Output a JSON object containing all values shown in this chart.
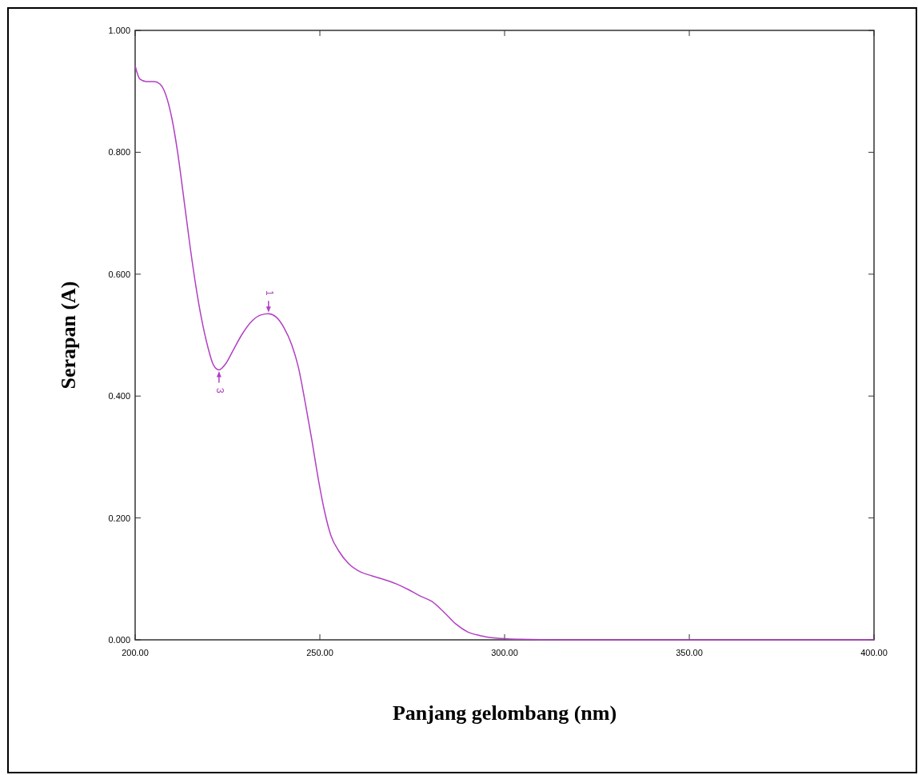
{
  "chart_data": {
    "type": "line",
    "xlabel": "Panjang gelombang (nm)",
    "ylabel": "Serapan (A)",
    "xlim": [
      200,
      400
    ],
    "ylim": [
      0,
      1
    ],
    "xticks": [
      {
        "value": 200,
        "label": "200.00"
      },
      {
        "value": 250,
        "label": "250.00"
      },
      {
        "value": 300,
        "label": "300.00"
      },
      {
        "value": 350,
        "label": "350.00"
      },
      {
        "value": 400,
        "label": "400.00"
      }
    ],
    "yticks": [
      {
        "value": 0,
        "label": "0.000"
      },
      {
        "value": 0.2,
        "label": "0.200"
      },
      {
        "value": 0.4,
        "label": "0.400"
      },
      {
        "value": 0.6,
        "label": "0.600"
      },
      {
        "value": 0.8,
        "label": "0.800"
      },
      {
        "value": 1,
        "label": "1.000"
      }
    ],
    "marker": "none",
    "line_style": "solid",
    "series": [
      {
        "color": "#b23fc4",
        "x": [
          200,
          201.3,
          203,
          205.2,
          206.7,
          208.2,
          210,
          211.5,
          213.2,
          214.9,
          216.5,
          218,
          219.7,
          221.2,
          222.7,
          224.5,
          226.6,
          229,
          231.6,
          234,
          236.1,
          238.1,
          240.3,
          242.4,
          244.2,
          245.9,
          247.8,
          249.6,
          251.3,
          253,
          255.2,
          257.8,
          260.8,
          264.1,
          267.3,
          270.6,
          273.8,
          277.1,
          280.3,
          283.5,
          286.8,
          290,
          293.3,
          297.6,
          304.1,
          315,
          336.6,
          400
        ],
        "values": [
          0.942,
          0.92,
          0.916,
          0.916,
          0.912,
          0.896,
          0.854,
          0.8,
          0.723,
          0.644,
          0.578,
          0.526,
          0.48,
          0.451,
          0.443,
          0.453,
          0.476,
          0.502,
          0.523,
          0.533,
          0.535,
          0.53,
          0.512,
          0.484,
          0.447,
          0.394,
          0.329,
          0.263,
          0.21,
          0.171,
          0.145,
          0.125,
          0.112,
          0.105,
          0.099,
          0.092,
          0.083,
          0.072,
          0.063,
          0.046,
          0.026,
          0.013,
          0.007,
          0.003,
          0.001,
          0,
          0,
          0
        ]
      }
    ],
    "annotations": [
      {
        "text": "1",
        "x": 236.1,
        "y": 0.535
      },
      {
        "text": "3",
        "x": 222.7,
        "y": 0.443
      }
    ]
  }
}
